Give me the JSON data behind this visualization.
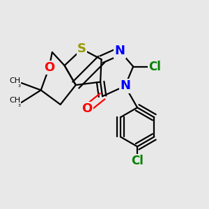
{
  "background_color": "#e8e8e8",
  "atom_colors": {
    "S": "#999900",
    "O": "#ff0000",
    "N": "#0000ff",
    "Cl": "#008000",
    "C": "#000000"
  },
  "lw": 1.6,
  "dbo": 0.018
}
